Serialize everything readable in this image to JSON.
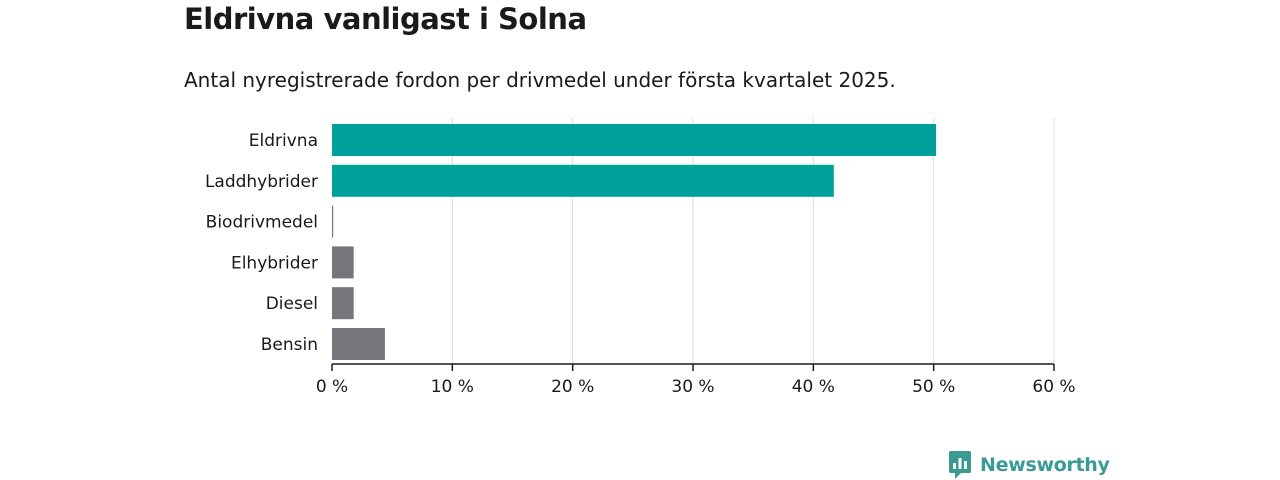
{
  "header": {
    "title": "Eldrivna vanligast i Solna",
    "subtitle": "Antal nyregistrerade fordon per drivmedel under första kvartalet 2025."
  },
  "brand": {
    "name": "Newsworthy",
    "icon": "newsworthy-logo-icon",
    "color": "#3a9a94"
  },
  "chart_data": {
    "type": "bar",
    "orientation": "horizontal",
    "categories": [
      "Eldrivna",
      "Laddhybrider",
      "Biodrivmedel",
      "Elhybrider",
      "Diesel",
      "Bensin"
    ],
    "values": [
      50.2,
      41.7,
      0.1,
      1.8,
      1.8,
      4.4
    ],
    "colors": [
      "#00a19a",
      "#00a19a",
      "#76757c",
      "#76757c",
      "#76757c",
      "#76757c"
    ],
    "xlim": [
      0,
      60
    ],
    "xticks": [
      0,
      10,
      20,
      30,
      40,
      50,
      60
    ],
    "xtick_labels": [
      "0 %",
      "10 %",
      "20 %",
      "30 %",
      "40 %",
      "50 %",
      "60 %"
    ],
    "grid": "vertical",
    "legend": "none"
  }
}
